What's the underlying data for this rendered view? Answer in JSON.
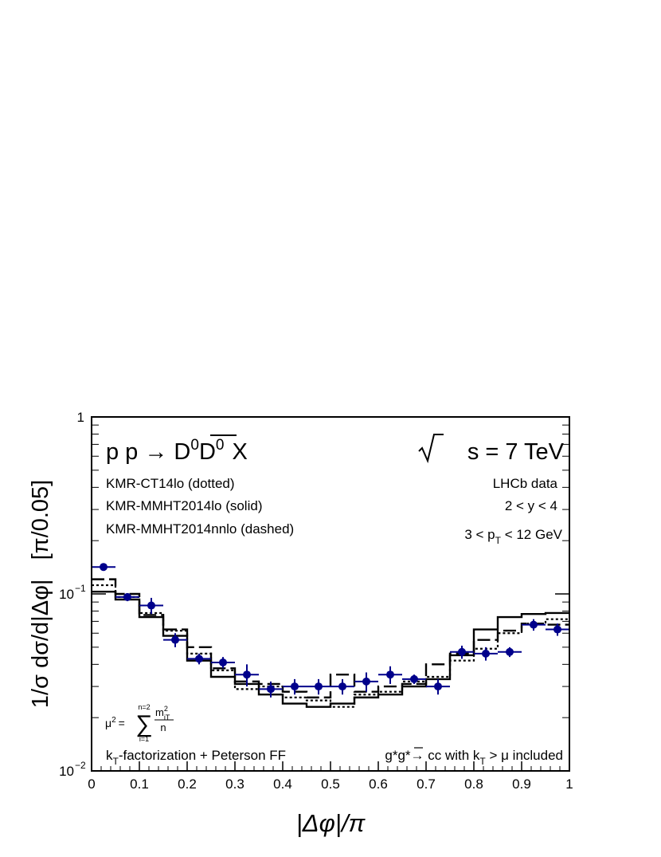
{
  "chart_data": {
    "type": "step",
    "title": "",
    "xlabel": "|Δφ|/π",
    "ylabel": "1/σ dσ/d|Δφ|   [π/0.05]",
    "xlim": [
      0,
      1
    ],
    "ylim": [
      0.01,
      1
    ],
    "yscale": "log",
    "grid": false,
    "x_ticks": [
      "0",
      "0.1",
      "0.2",
      "0.3",
      "0.4",
      "0.5",
      "0.6",
      "0.7",
      "0.8",
      "0.9",
      "1"
    ],
    "y_ticks": [
      {
        "value": 0.01,
        "base": "10",
        "exp": "−2"
      },
      {
        "value": 0.1,
        "base": "10",
        "exp": "−1"
      },
      {
        "value": 1,
        "base": "1",
        "exp": ""
      }
    ],
    "bin_edges": [
      0,
      0.05,
      0.1,
      0.15,
      0.2,
      0.25,
      0.3,
      0.35,
      0.4,
      0.45,
      0.5,
      0.55,
      0.6,
      0.65,
      0.7,
      0.75,
      0.8,
      0.85,
      0.9,
      0.95,
      1.0
    ],
    "series": [
      {
        "name": "KMR-CT14lo (dotted)",
        "style": "dotted",
        "values": [
          0.112,
          0.096,
          0.078,
          0.062,
          0.046,
          0.037,
          0.029,
          0.03,
          0.026,
          0.025,
          0.023,
          0.027,
          0.028,
          0.032,
          0.034,
          0.042,
          0.049,
          0.06,
          0.068,
          0.072
        ]
      },
      {
        "name": "KMR-MMHT2014lo (solid)",
        "style": "solid",
        "values": [
          0.103,
          0.093,
          0.074,
          0.058,
          0.042,
          0.034,
          0.031,
          0.027,
          0.024,
          0.023,
          0.024,
          0.026,
          0.027,
          0.03,
          0.033,
          0.045,
          0.063,
          0.074,
          0.077,
          0.078
        ]
      },
      {
        "name": "KMR-MMHT2014nnlo (dashed)",
        "style": "dashed",
        "values": [
          0.121,
          0.1,
          0.076,
          0.063,
          0.05,
          0.038,
          0.032,
          0.031,
          0.028,
          0.026,
          0.035,
          0.028,
          0.03,
          0.031,
          0.04,
          0.046,
          0.055,
          0.062,
          0.068,
          0.067
        ]
      },
      {
        "name": "LHCb data",
        "style": "points",
        "color": "#00008b",
        "x": [
          0.025,
          0.075,
          0.125,
          0.175,
          0.225,
          0.275,
          0.325,
          0.375,
          0.425,
          0.475,
          0.525,
          0.575,
          0.625,
          0.675,
          0.725,
          0.775,
          0.825,
          0.875,
          0.925,
          0.975
        ],
        "values": [
          0.142,
          0.096,
          0.086,
          0.055,
          0.043,
          0.041,
          0.035,
          0.029,
          0.03,
          0.03,
          0.03,
          0.032,
          0.035,
          0.033,
          0.03,
          0.047,
          0.046,
          0.047,
          0.067,
          0.063
        ],
        "err_low": [
          0.003,
          0.005,
          0.009,
          0.005,
          0.003,
          0.003,
          0.005,
          0.003,
          0.003,
          0.003,
          0.003,
          0.004,
          0.004,
          0.002,
          0.003,
          0.004,
          0.004,
          0.003,
          0.005,
          0.005
        ],
        "err_high": [
          0.003,
          0.005,
          0.009,
          0.005,
          0.003,
          0.003,
          0.005,
          0.003,
          0.003,
          0.003,
          0.003,
          0.004,
          0.004,
          0.002,
          0.003,
          0.004,
          0.004,
          0.003,
          0.005,
          0.005
        ]
      }
    ],
    "annotations": {
      "process_prefix": "p p → D",
      "process_sup1": "0",
      "process_dbar": "D",
      "process_sup2": "0",
      "process_suffix": "X",
      "energy_rest": "s = 7 TeV",
      "legend_ct14lo": "KMR-CT14lo (dotted)",
      "legend_mmht_lo": "KMR-MMHT2014lo (solid)",
      "legend_mmht_nnlo": "KMR-MMHT2014nnlo (dashed)",
      "data_label": "LHCb data",
      "rapidity_cut": "2 < y < 4",
      "pt_prefix": "3 < p",
      "pt_sub": "T",
      "pt_suffix": "< 12 GeV",
      "scale_lhs": "μ",
      "scale_sup": "2",
      "scale_eq": "=",
      "sum_upper": "n=2",
      "sum_lower": "i=1",
      "scale_num": "m",
      "scale_num_sup": "2",
      "scale_num_sub": "iT",
      "scale_den": "n",
      "approach_k": "k",
      "approach_sub": "T",
      "approach_rest": "-factorization + Peterson FF",
      "subproc_prefix": "g*g*→ cc with k",
      "subproc_sub": "T",
      "subproc_suffix": "> μ included"
    }
  }
}
